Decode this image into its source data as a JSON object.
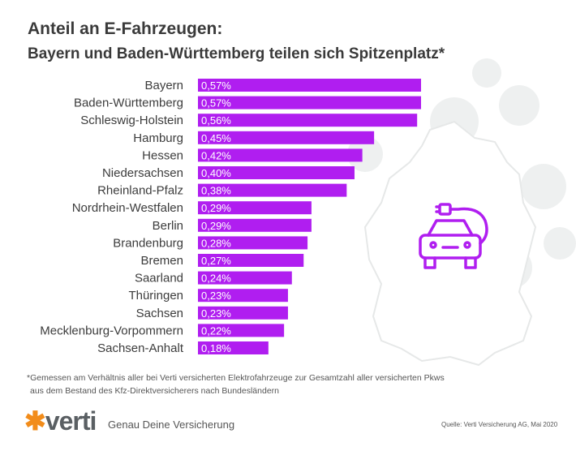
{
  "header": {
    "title": "Anteil an E-Fahrzeugen:",
    "subtitle": "Bayern und Baden-Württemberg teilen sich Spitzenplatz*"
  },
  "chart_data": {
    "type": "bar",
    "orientation": "horizontal",
    "categories": [
      "Bayern",
      "Baden-Württemberg",
      "Schleswig-Holstein",
      "Hamburg",
      "Hessen",
      "Niedersachsen",
      "Rheinland-Pfalz",
      "Nordrhein-Westfalen",
      "Berlin",
      "Brandenburg",
      "Bremen",
      "Saarland",
      "Thüringen",
      "Sachsen",
      "Mecklenburg-Vorpommern",
      "Sachsen-Anhalt"
    ],
    "values": [
      0.57,
      0.57,
      0.56,
      0.45,
      0.42,
      0.4,
      0.38,
      0.29,
      0.29,
      0.28,
      0.27,
      0.24,
      0.23,
      0.23,
      0.22,
      0.18
    ],
    "labels": [
      "0,57%",
      "0,57%",
      "0,56%",
      "0,45%",
      "0,42%",
      "0,40%",
      "0,38%",
      "0,29%",
      "0,29%",
      "0,28%",
      "0,27%",
      "0,24%",
      "0,23%",
      "0,23%",
      "0,22%",
      "0,18%"
    ],
    "unit": "%",
    "bar_color": "#b01ef0",
    "grid": false
  },
  "footer": {
    "note_line1": "*Gemessen am Verhältnis aller bei Verti versicherten Elektrofahrzeuge zur Gesamtzahl aller versicherten Pkws",
    "note_line2": "aus dem Bestand des Kfz-Direktversicherers nach Bundesländern",
    "logo": "verti",
    "tagline": "Genau Deine Versicherung",
    "source": "Quelle: Verti Versicherung AG, Mai 2020"
  },
  "icons": {
    "map": "germany-map",
    "car": "electric-car-icon"
  }
}
